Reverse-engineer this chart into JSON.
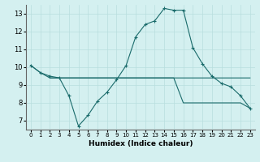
{
  "xlabel": "Humidex (Indice chaleur)",
  "x": [
    0,
    1,
    2,
    3,
    4,
    5,
    6,
    7,
    8,
    9,
    10,
    11,
    12,
    13,
    14,
    15,
    16,
    17,
    18,
    19,
    20,
    21,
    22,
    23
  ],
  "line1": [
    10.1,
    9.7,
    9.5,
    9.4,
    8.4,
    6.7,
    7.3,
    8.1,
    8.6,
    9.3,
    10.1,
    11.7,
    12.4,
    12.6,
    13.3,
    13.2,
    13.2,
    11.1,
    10.2,
    9.5,
    9.1,
    8.9,
    8.4,
    7.7
  ],
  "line2_x": [
    0,
    1,
    2,
    3,
    4,
    5,
    6,
    7,
    8,
    9,
    10,
    11,
    12,
    13,
    14,
    15,
    16,
    17,
    18,
    19,
    20,
    21,
    22,
    23
  ],
  "line2_y": [
    10.1,
    9.7,
    9.4,
    9.4,
    9.4,
    9.4,
    9.4,
    9.4,
    9.4,
    9.4,
    9.4,
    9.4,
    9.4,
    9.4,
    9.4,
    9.4,
    9.4,
    9.4,
    9.4,
    9.4,
    9.4,
    9.4,
    9.4,
    9.4
  ],
  "line3_x": [
    2,
    3,
    4,
    5,
    6,
    7,
    8,
    9,
    10,
    11,
    12,
    13,
    14,
    15,
    16,
    17,
    18,
    19,
    20,
    21,
    22,
    23
  ],
  "line3_y": [
    9.4,
    9.4,
    9.4,
    9.4,
    9.4,
    9.4,
    9.4,
    9.4,
    9.4,
    9.4,
    9.4,
    9.4,
    9.4,
    9.4,
    8.0,
    8.0,
    8.0,
    8.0,
    8.0,
    8.0,
    8.0,
    7.7
  ],
  "color": "#1a6b6b",
  "bg_color": "#d4f0f0",
  "grid_color": "#b8dede",
  "ylim": [
    6.5,
    13.5
  ],
  "xlim": [
    -0.5,
    23.5
  ],
  "yticks": [
    7,
    8,
    9,
    10,
    11,
    12,
    13
  ],
  "xticks": [
    0,
    1,
    2,
    3,
    4,
    5,
    6,
    7,
    8,
    9,
    10,
    11,
    12,
    13,
    14,
    15,
    16,
    17,
    18,
    19,
    20,
    21,
    22,
    23
  ]
}
